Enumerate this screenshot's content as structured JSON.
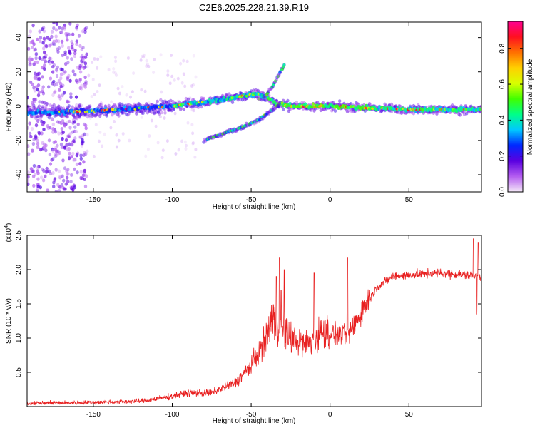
{
  "title": "C2E6.2025.228.21.39.R19",
  "chart_data": [
    {
      "type": "heatmap",
      "xlabel": "Height of straight line (km)",
      "ylabel": "Frequency (Hz)",
      "xlim": [
        -192,
        96
      ],
      "ylim": [
        -50,
        49
      ],
      "xticks": [
        -150,
        -100,
        -50,
        0,
        50
      ],
      "yticks": [
        -40,
        -20,
        0,
        20,
        40
      ],
      "colorbar": {
        "label": "Normalized spectral amplitude",
        "range": [
          0,
          0.95
        ],
        "ticks": [
          0.0,
          0.2,
          0.4,
          0.6,
          0.8
        ],
        "colormap": [
          "#f5e8f8",
          "#b35cf0",
          "#5a00e0",
          "#0028ff",
          "#00c8ff",
          "#00ff88",
          "#40ff00",
          "#d8ff00",
          "#ffd000",
          "#ff7000",
          "#ff1020",
          "#ff0090"
        ]
      },
      "main_band": [
        {
          "x": -192,
          "y": -4
        },
        {
          "x": -150,
          "y": -3
        },
        {
          "x": -100,
          "y": 0
        },
        {
          "x": -75,
          "y": 3
        },
        {
          "x": -55,
          "y": 6
        },
        {
          "x": -45,
          "y": 7
        },
        {
          "x": -40,
          "y": 5
        },
        {
          "x": -35,
          "y": 2
        },
        {
          "x": -25,
          "y": 0
        },
        {
          "x": 0,
          "y": 0
        },
        {
          "x": 50,
          "y": -2
        },
        {
          "x": 95,
          "y": -2
        }
      ],
      "lower_branch": [
        {
          "x": -80,
          "y": -20
        },
        {
          "x": -65,
          "y": -15
        },
        {
          "x": -55,
          "y": -12
        },
        {
          "x": -45,
          "y": -8
        },
        {
          "x": -38,
          "y": -3
        },
        {
          "x": -32,
          "y": 1
        }
      ],
      "upper_branch": [
        {
          "x": -45,
          "y": 4
        },
        {
          "x": -40,
          "y": 7
        },
        {
          "x": -36,
          "y": 12
        },
        {
          "x": -32,
          "y": 19
        },
        {
          "x": -29,
          "y": 24
        }
      ]
    },
    {
      "type": "line",
      "xlabel": "Height of straight line (km)",
      "ylabel": "SNR (10 * v/v)",
      "yscale_label": "(x10^4)",
      "xlim": [
        -192,
        96
      ],
      "ylim": [
        0,
        2.5
      ],
      "xticks": [
        -150,
        -100,
        -50,
        0,
        50
      ],
      "yticks": [
        0.5,
        1.0,
        1.5,
        2.0,
        2.5
      ],
      "series": [
        {
          "color": "#e82020",
          "envelope": [
            {
              "x": -192,
              "y": 0.05
            },
            {
              "x": -150,
              "y": 0.06
            },
            {
              "x": -120,
              "y": 0.08
            },
            {
              "x": -100,
              "y": 0.15
            },
            {
              "x": -90,
              "y": 0.2
            },
            {
              "x": -75,
              "y": 0.2
            },
            {
              "x": -60,
              "y": 0.35
            },
            {
              "x": -50,
              "y": 0.6
            },
            {
              "x": -42,
              "y": 0.9
            },
            {
              "x": -37,
              "y": 1.3
            },
            {
              "x": -33,
              "y": 1.2
            },
            {
              "x": -25,
              "y": 1.0
            },
            {
              "x": -15,
              "y": 0.9
            },
            {
              "x": -5,
              "y": 1.1
            },
            {
              "x": 5,
              "y": 1.05
            },
            {
              "x": 12,
              "y": 1.05
            },
            {
              "x": 20,
              "y": 1.4
            },
            {
              "x": 30,
              "y": 1.75
            },
            {
              "x": 40,
              "y": 1.9
            },
            {
              "x": 55,
              "y": 1.93
            },
            {
              "x": 70,
              "y": 1.95
            },
            {
              "x": 85,
              "y": 1.92
            },
            {
              "x": 96,
              "y": 1.9
            }
          ],
          "spikes": [
            {
              "x": -34,
              "y": 1.9
            },
            {
              "x": -32,
              "y": 2.18
            },
            {
              "x": -31,
              "y": 1.7
            },
            {
              "x": -29,
              "y": 2.0
            },
            {
              "x": -10,
              "y": 1.95
            },
            {
              "x": 11,
              "y": 2.18
            },
            {
              "x": 91,
              "y": 2.45
            },
            {
              "x": 93,
              "y": 1.35
            },
            {
              "x": 94,
              "y": 2.4
            }
          ]
        }
      ]
    }
  ]
}
